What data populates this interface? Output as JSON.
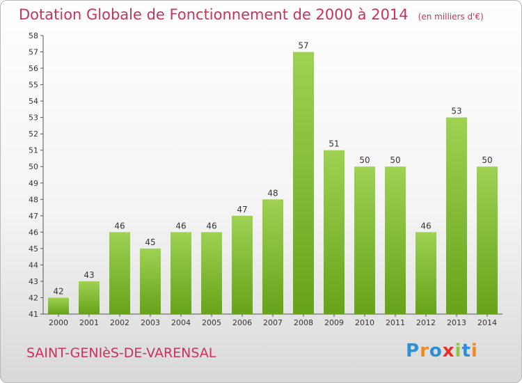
{
  "header": {
    "title": "Dotation Globale de Fonctionnement de 2000 à 2014",
    "unit": "(en milliers d'€)"
  },
  "footer": {
    "commune": "SAINT-GENIèS-DE-VARENSAL",
    "logo": "Proxiti"
  },
  "colors": {
    "bar_light": "#9fd152",
    "bar_dark": "#66a319",
    "title": "#c8325a"
  },
  "chart_data": {
    "type": "bar",
    "title": "Dotation Globale de Fonctionnement de 2000 à 2014",
    "subtitle": "(en milliers d'€)",
    "xlabel": "",
    "ylabel": "",
    "categories": [
      "2000",
      "2001",
      "2002",
      "2003",
      "2004",
      "2005",
      "2006",
      "2007",
      "2008",
      "2009",
      "2010",
      "2011",
      "2012",
      "2013",
      "2014"
    ],
    "values": [
      42,
      43,
      46,
      45,
      46,
      46,
      47,
      48,
      57,
      51,
      50,
      50,
      46,
      53,
      50
    ],
    "ylim": [
      41,
      58
    ],
    "yticks": [
      41,
      42,
      43,
      44,
      45,
      46,
      47,
      48,
      49,
      50,
      51,
      52,
      53,
      54,
      55,
      56,
      57,
      58
    ],
    "grid": false,
    "legend": "none"
  }
}
